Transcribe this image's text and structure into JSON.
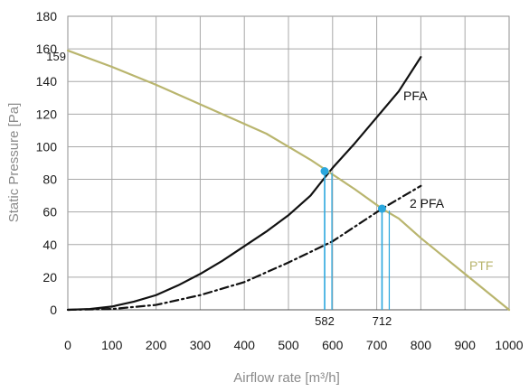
{
  "chart_data": {
    "type": "line",
    "xlabel": "Airflow rate [m³/h]",
    "ylabel": "Static Pressure [Pa]",
    "xlim": [
      0,
      1000
    ],
    "ylim": [
      0,
      180
    ],
    "x_ticks": [
      0,
      100,
      200,
      300,
      400,
      500,
      600,
      700,
      800,
      900,
      1000
    ],
    "y_ticks": [
      0,
      20,
      40,
      60,
      80,
      100,
      120,
      140,
      160,
      180
    ],
    "grid": true,
    "series": [
      {
        "name": "PFA",
        "color": "#111111",
        "dash": "solid",
        "x": [
          0,
          50,
          100,
          150,
          200,
          250,
          300,
          350,
          400,
          450,
          500,
          550,
          582,
          600,
          650,
          700,
          750,
          800
        ],
        "y": [
          0,
          0.5,
          2,
          5,
          9,
          15,
          22,
          30,
          39,
          48,
          58,
          70,
          81,
          87,
          102,
          118,
          134,
          155
        ]
      },
      {
        "name": "2 PFA",
        "color": "#111111",
        "dash": "dashdot",
        "x": [
          0,
          100,
          200,
          300,
          400,
          500,
          600,
          712,
          800
        ],
        "y": [
          0,
          0.5,
          3,
          9,
          17,
          29,
          42,
          62,
          76
        ]
      },
      {
        "name": "PTF",
        "color": "#b9b56e",
        "dash": "solid",
        "x": [
          0,
          100,
          200,
          300,
          400,
          450,
          500,
          550,
          600,
          650,
          712,
          750,
          800,
          850,
          900,
          950,
          1000
        ],
        "y": [
          159,
          149,
          138,
          126,
          114,
          108,
          100,
          92,
          83,
          74,
          62,
          56,
          44,
          33,
          22,
          11,
          0
        ]
      }
    ],
    "operating_points": [
      {
        "x": 582,
        "y": 85,
        "label": "582",
        "color": "#2aa7de"
      },
      {
        "x": 712,
        "y": 62,
        "label": "712",
        "color": "#2aa7de"
      }
    ],
    "annotations": [
      {
        "text": "159",
        "x": 0,
        "y": 159
      }
    ]
  }
}
